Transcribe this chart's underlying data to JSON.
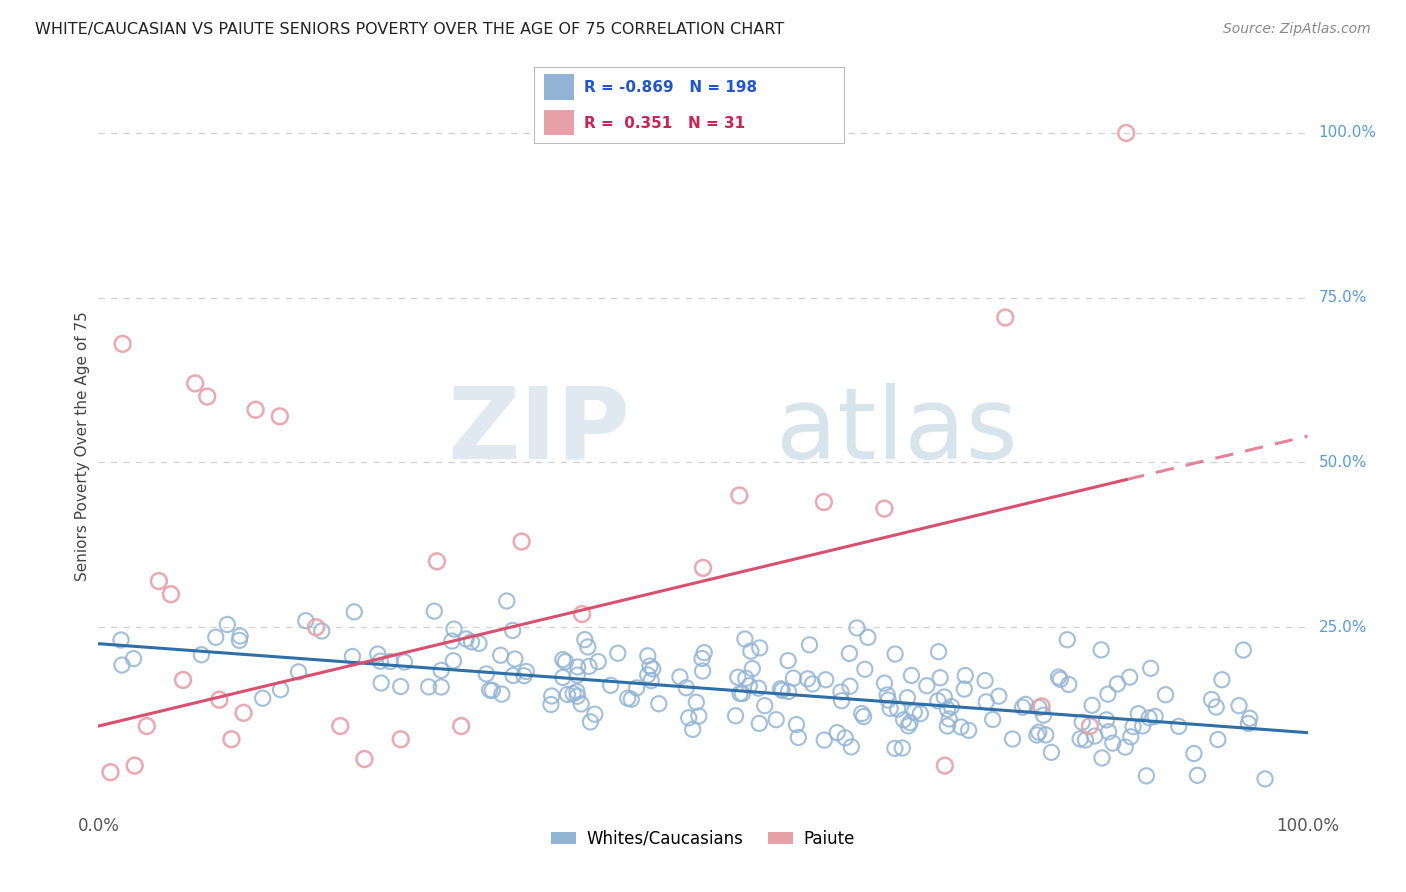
{
  "title": "WHITE/CAUCASIAN VS PAIUTE SENIORS POVERTY OVER THE AGE OF 75 CORRELATION CHART",
  "source": "Source: ZipAtlas.com",
  "ylabel": "Seniors Poverty Over the Age of 75",
  "watermark_ZIP": "ZIP",
  "watermark_atlas": "atlas",
  "blue_R": -0.869,
  "blue_N": 198,
  "pink_R": 0.351,
  "pink_N": 31,
  "blue_color": "#92b4d4",
  "pink_color": "#e8a0a8",
  "blue_line_color": "#2e6fa8",
  "pink_line_color": "#d94f6e",
  "blue_label": "Whites/Caucasians",
  "pink_label": "Paiute",
  "xlim": [
    0.0,
    1.0
  ],
  "ylim": [
    -0.03,
    1.08
  ],
  "bg_color": "#ffffff",
  "grid_color": "#d0d0d0",
  "right_label_color": "#5b9bd5",
  "legend_border_color": "#aaaaaa"
}
